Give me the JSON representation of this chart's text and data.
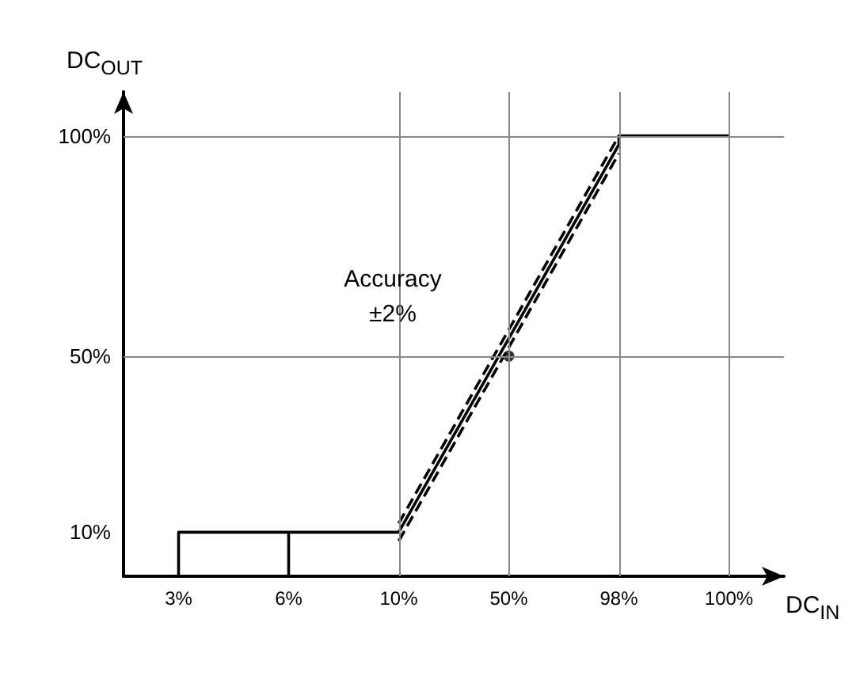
{
  "chart_data": {
    "type": "line",
    "xlabel": "DC$_{IN}$",
    "ylabel": "DC$_{OUT}$",
    "categories": [
      "3%",
      "6%",
      "10%",
      "50%",
      "98%",
      "100%"
    ],
    "ylim": [
      0,
      110
    ],
    "yticks": [
      {
        "value": 10,
        "label": "10%"
      },
      {
        "value": 50,
        "label": "50%"
      },
      {
        "value": 100,
        "label": "100%"
      }
    ],
    "marker": "none",
    "series": [
      {
        "color": "#000000",
        "x": [
          "3%",
          "3%",
          "10%",
          "98%",
          "98%",
          "100%"
        ],
        "values": [
          0,
          10,
          10,
          98,
          100,
          100
        ],
        "line_style": "solid"
      },
      {
        "color": "#000000",
        "x": [
          "6%",
          "6%"
        ],
        "values": [
          0,
          10
        ],
        "line_style": "solid"
      },
      {
        "color": "#000000",
        "x": [
          "10%",
          "98%"
        ],
        "values": [
          12,
          100
        ],
        "line_style": "dashed"
      },
      {
        "color": "#000000",
        "x": [
          "10%",
          "98%"
        ],
        "values": [
          8,
          96
        ],
        "line_style": "dashed"
      },
      {
        "type": "scatter",
        "color": "#000000",
        "x": [
          "50%"
        ],
        "values": [
          50
        ],
        "marker": "circle"
      }
    ],
    "ref_lines": [
      {
        "axis": "y",
        "value": 100,
        "color": "#888888"
      },
      {
        "axis": "y",
        "value": 50,
        "color": "#888888"
      },
      {
        "axis": "x",
        "value": "10%",
        "color": "#888888"
      },
      {
        "axis": "x",
        "value": "50%",
        "color": "#888888"
      },
      {
        "axis": "x",
        "value": "98%",
        "color": "#888888"
      },
      {
        "axis": "x",
        "value": "100%",
        "color": "#888888"
      }
    ],
    "annotations": [
      "Accuracy",
      "±2%"
    ]
  }
}
